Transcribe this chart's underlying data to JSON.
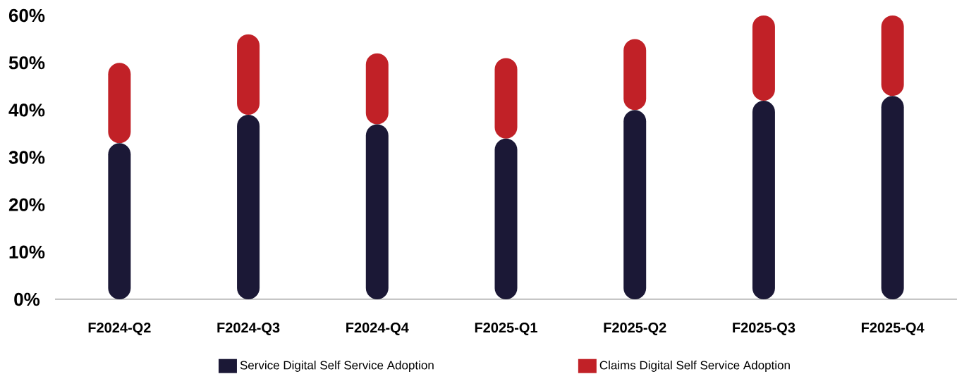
{
  "chart_data": {
    "type": "bar",
    "stacked": true,
    "categories": [
      "F2024-Q2",
      "F2024-Q3",
      "F2024-Q4",
      "F2025-Q1",
      "F2025-Q2",
      "F2025-Q3",
      "F2025-Q4"
    ],
    "series": [
      {
        "name": "Service Digital Self Service Adoption",
        "color": "#1b1836",
        "values": [
          33,
          39,
          37,
          34,
          40,
          42,
          43
        ]
      },
      {
        "name": "Claims Digital Self Service Adoption",
        "color": "#c12127",
        "values": [
          17,
          17,
          15,
          17,
          15,
          18,
          17
        ]
      }
    ],
    "ylim": [
      0,
      60
    ],
    "yticks": [
      {
        "value": 0,
        "label": "0%"
      },
      {
        "value": 10,
        "label": "10%"
      },
      {
        "value": 20,
        "label": "20%"
      },
      {
        "value": 30,
        "label": "30%"
      },
      {
        "value": 40,
        "label": "40%"
      },
      {
        "value": 50,
        "label": "50%"
      },
      {
        "value": 60,
        "label": "60%"
      }
    ],
    "legend": "bottom",
    "grid": false
  }
}
